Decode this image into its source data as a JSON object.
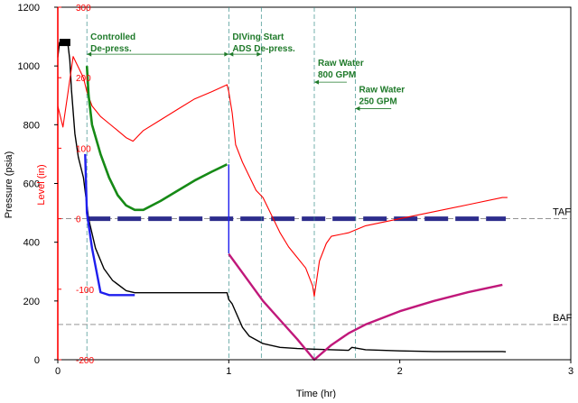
{
  "chart_data": {
    "type": "line",
    "title": "",
    "xlabel": "Time (hr)",
    "ylabel_left": "Pressure (psia)",
    "ylabel_right": "Level (in)",
    "xlim": [
      0,
      3
    ],
    "ylim_left": [
      0,
      1200
    ],
    "ylim_right": [
      -200,
      300
    ],
    "x_ticks": [
      "0",
      "1",
      "2",
      "3"
    ],
    "y_ticks_left": [
      "0",
      "200",
      "400",
      "600",
      "800",
      "1000",
      "1200"
    ],
    "y_ticks_right": [
      "-200",
      "-100",
      "0",
      "100",
      "200",
      "300"
    ],
    "grid": false,
    "colors": {
      "pressure": "#000000",
      "level": "#ff0000",
      "green": "#168a16",
      "blue": "#1f1fee",
      "magenta": "#c0187a",
      "taf": "#2d2d8c",
      "annotation": "#1f7a2a",
      "left_axis": "#000000",
      "right_axis": "#ff0000"
    },
    "reference_lines": [
      {
        "name": "TAF",
        "y": 480,
        "axis": "left"
      },
      {
        "name": "BAF",
        "y": 120,
        "axis": "left"
      }
    ],
    "event_lines_x": [
      0.17,
      1.0,
      1.19,
      1.5,
      1.74
    ],
    "annotations": [
      {
        "text": "Controlled",
        "x": 0.17,
        "y": 1090
      },
      {
        "text": "De-press.",
        "x": 0.17,
        "y": 1050
      },
      {
        "text": "DIVing Start",
        "x": 1.0,
        "y": 1090
      },
      {
        "text": "ADS De-press.",
        "x": 1.0,
        "y": 1050
      },
      {
        "text": "Raw Water",
        "x": 1.5,
        "y": 1000
      },
      {
        "text": "800 GPM",
        "x": 1.5,
        "y": 960
      },
      {
        "text": "Raw Water",
        "x": 1.74,
        "y": 910
      },
      {
        "text": "250 GPM",
        "x": 1.74,
        "y": 870
      }
    ],
    "series": [
      {
        "key": "pressure",
        "axis": "left",
        "x": [
          0.0,
          0.01,
          0.06,
          0.07,
          0.08,
          0.1,
          0.12,
          0.15,
          0.18,
          0.22,
          0.27,
          0.32,
          0.4,
          0.45,
          0.6,
          0.8,
          0.99,
          1.0,
          1.02,
          1.05,
          1.08,
          1.12,
          1.2,
          1.3,
          1.4,
          1.5,
          1.6,
          1.7,
          1.72,
          1.8,
          2.0,
          2.2,
          2.4,
          2.6,
          2.62
        ],
        "y": [
          1030,
          1080,
          1070,
          1020,
          920,
          770,
          690,
          620,
          480,
          380,
          310,
          270,
          235,
          228,
          228,
          228,
          228,
          205,
          190,
          150,
          110,
          80,
          55,
          42,
          38,
          36,
          34,
          32,
          42,
          34,
          30,
          28,
          28,
          28,
          27
        ]
      },
      {
        "key": "level",
        "axis": "right",
        "x": [
          0.0,
          0.03,
          0.06,
          0.09,
          0.12,
          0.15,
          0.17,
          0.2,
          0.25,
          0.3,
          0.35,
          0.4,
          0.44,
          0.5,
          0.6,
          0.7,
          0.8,
          0.9,
          0.99,
          1.0,
          1.02,
          1.04,
          1.08,
          1.12,
          1.16,
          1.2,
          1.25,
          1.3,
          1.35,
          1.4,
          1.45,
          1.49,
          1.5,
          1.53,
          1.57,
          1.6,
          1.7,
          1.8,
          2.0,
          2.2,
          2.4,
          2.6,
          2.63
        ],
        "y": [
          160,
          130,
          180,
          230,
          215,
          200,
          180,
          160,
          145,
          135,
          125,
          115,
          110,
          125,
          140,
          155,
          170,
          180,
          190,
          180,
          150,
          105,
          80,
          60,
          40,
          30,
          5,
          -20,
          -40,
          -55,
          -70,
          -95,
          -110,
          -60,
          -35,
          -25,
          -20,
          -10,
          0,
          10,
          20,
          30,
          30
        ]
      },
      {
        "key": "green",
        "axis": "left",
        "x": [
          0.17,
          0.18,
          0.2,
          0.25,
          0.3,
          0.35,
          0.4,
          0.45,
          0.5,
          0.6,
          0.7,
          0.8,
          0.9,
          0.99
        ],
        "y": [
          1000,
          900,
          800,
          700,
          620,
          560,
          525,
          510,
          510,
          540,
          575,
          610,
          640,
          665
        ]
      },
      {
        "key": "blue",
        "axis": "left",
        "x": [
          0.16,
          0.17,
          0.2,
          0.25,
          0.3,
          0.45
        ],
        "y": [
          700,
          500,
          380,
          230,
          220,
          220
        ]
      },
      {
        "key": "blue_jump",
        "axis": "left",
        "x": [
          1.0,
          1.0
        ],
        "y": [
          362,
          665
        ]
      },
      {
        "key": "magenta",
        "axis": "left",
        "x": [
          1.0,
          1.1,
          1.2,
          1.3,
          1.4,
          1.5,
          1.6,
          1.7,
          1.8,
          2.0,
          2.2,
          2.4,
          2.6
        ],
        "y": [
          360,
          280,
          200,
          135,
          70,
          0,
          50,
          90,
          120,
          165,
          200,
          230,
          255
        ]
      }
    ]
  }
}
